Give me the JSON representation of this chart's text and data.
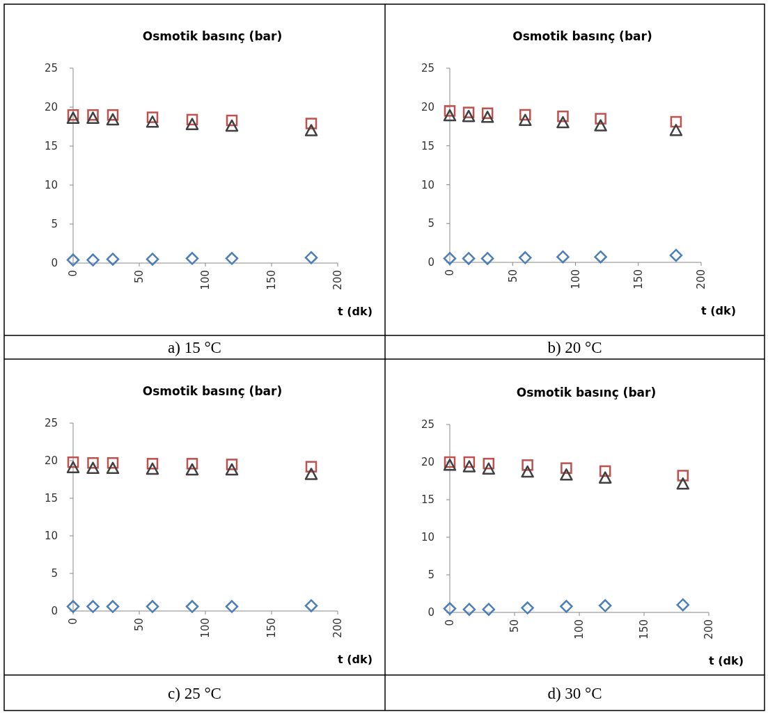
{
  "chart_data": [
    {
      "type": "scatter",
      "title": "Osmotik basınç (bar)",
      "xlabel": "t (dk)",
      "x": [
        0,
        15,
        30,
        60,
        90,
        120,
        180
      ],
      "xlim": [
        0,
        200
      ],
      "xticks": [
        0,
        50,
        100,
        150,
        200
      ],
      "ylim": [
        0,
        25
      ],
      "yticks": [
        0,
        5,
        10,
        15,
        20,
        25
      ],
      "grid": false,
      "annotations": [
        "a) 15 °C"
      ],
      "series": [
        {
          "color": "#4a7ebb",
          "marker": "diamond",
          "values": [
            0.4,
            0.4,
            0.5,
            0.5,
            0.6,
            0.6,
            0.7
          ]
        },
        {
          "color": "#c0504d",
          "marker": "square",
          "values": [
            19.0,
            19.0,
            19.0,
            18.7,
            18.4,
            18.3,
            17.9
          ]
        },
        {
          "color": "#404040",
          "marker": "triangle",
          "values": [
            18.6,
            18.6,
            18.4,
            18.1,
            17.8,
            17.6,
            17.0
          ]
        }
      ]
    },
    {
      "type": "scatter",
      "title": "Osmotik basınç (bar)",
      "xlabel": "t (dk)",
      "x": [
        0,
        15,
        30,
        60,
        90,
        120,
        180
      ],
      "xlim": [
        0,
        200
      ],
      "xticks": [
        0,
        50,
        100,
        150,
        200
      ],
      "ylim": [
        0,
        25
      ],
      "yticks": [
        0,
        5,
        10,
        15,
        20,
        25
      ],
      "grid": false,
      "annotations": [
        "b) 20 °C"
      ],
      "series": [
        {
          "color": "#4a7ebb",
          "marker": "diamond",
          "values": [
            0.5,
            0.5,
            0.5,
            0.6,
            0.7,
            0.7,
            0.9
          ]
        },
        {
          "color": "#c0504d",
          "marker": "square",
          "values": [
            19.5,
            19.3,
            19.2,
            19.0,
            18.8,
            18.5,
            18.1
          ]
        },
        {
          "color": "#404040",
          "marker": "triangle",
          "values": [
            18.9,
            18.8,
            18.7,
            18.3,
            18.0,
            17.6,
            17.0
          ]
        }
      ]
    },
    {
      "type": "scatter",
      "title": "Osmotik basınç (bar)",
      "xlabel": "t (dk)",
      "x": [
        0,
        15,
        30,
        60,
        90,
        120,
        180
      ],
      "xlim": [
        0,
        200
      ],
      "xticks": [
        0,
        50,
        100,
        150,
        200
      ],
      "ylim": [
        0,
        25
      ],
      "yticks": [
        0,
        5,
        10,
        15,
        20,
        25
      ],
      "grid": false,
      "annotations": [
        "c) 25 °C"
      ],
      "series": [
        {
          "color": "#4a7ebb",
          "marker": "diamond",
          "values": [
            0.6,
            0.6,
            0.6,
            0.6,
            0.6,
            0.6,
            0.7
          ]
        },
        {
          "color": "#c0504d",
          "marker": "square",
          "values": [
            19.8,
            19.7,
            19.7,
            19.6,
            19.6,
            19.5,
            19.2
          ]
        },
        {
          "color": "#404040",
          "marker": "triangle",
          "values": [
            19.1,
            19.0,
            19.0,
            18.9,
            18.8,
            18.8,
            18.2
          ]
        }
      ]
    },
    {
      "type": "scatter",
      "title": "Osmotik basınç (bar)",
      "xlabel": "t (dk)",
      "x": [
        0,
        15,
        30,
        60,
        90,
        120,
        180
      ],
      "xlim": [
        0,
        200
      ],
      "xticks": [
        0,
        50,
        100,
        150,
        200
      ],
      "ylim": [
        0,
        25
      ],
      "yticks": [
        0,
        5,
        10,
        15,
        20,
        25
      ],
      "grid": false,
      "annotations": [
        "d) 30 °C"
      ],
      "series": [
        {
          "color": "#4a7ebb",
          "marker": "diamond",
          "values": [
            0.5,
            0.4,
            0.4,
            0.6,
            0.8,
            0.9,
            1.0
          ]
        },
        {
          "color": "#c0504d",
          "marker": "square",
          "values": [
            20.0,
            20.0,
            19.8,
            19.6,
            19.2,
            18.8,
            18.2
          ]
        },
        {
          "color": "#404040",
          "marker": "triangle",
          "values": [
            19.6,
            19.4,
            19.1,
            18.7,
            18.3,
            17.9,
            17.1
          ]
        }
      ]
    }
  ]
}
